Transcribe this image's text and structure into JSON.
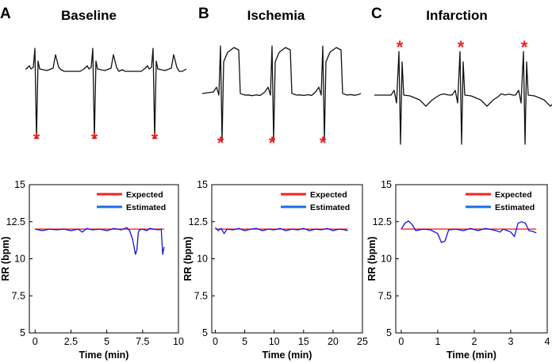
{
  "figure": {
    "panels": [
      {
        "letter": "A",
        "title": "Baseline",
        "ecg_type": "baseline",
        "beats": 3
      },
      {
        "letter": "B",
        "title": "Ischemia",
        "ecg_type": "ischemia",
        "beats": 3
      },
      {
        "letter": "C",
        "title": "Infarction",
        "ecg_type": "infarction",
        "beats": 3
      }
    ],
    "marker_symbol": "*",
    "marker_color": "#ff1a1a",
    "expected_color": "#ff2020",
    "estimated_color": "#1414dc",
    "legend_estimated_color": "#1a6ee8"
  },
  "chart_data": [
    {
      "type": "line",
      "title": "Baseline",
      "xlabel": "Time (min)",
      "ylabel": "RR (bpm)",
      "xlim": [
        -0.4,
        10
      ],
      "ylim": [
        5,
        15
      ],
      "xticks": [
        "0",
        "2.5",
        "5",
        "7.5",
        "10"
      ],
      "xtick_values": [
        0,
        2.5,
        5,
        7.5,
        10
      ],
      "yticks": [
        "5",
        "7.5",
        "10",
        "12.5",
        "15"
      ],
      "ytick_values": [
        5,
        7.5,
        10,
        12.5,
        15
      ],
      "legend": [
        "Expected",
        "Estimated"
      ],
      "series": [
        {
          "name": "Expected",
          "x": [
            0,
            9
          ],
          "y": [
            12,
            12
          ]
        },
        {
          "name": "Estimated",
          "x": [
            0,
            0.5,
            1,
            1.5,
            2,
            2.5,
            3,
            3.3,
            3.6,
            4,
            4.5,
            5,
            5.5,
            6,
            6.4,
            6.6,
            6.8,
            6.9,
            7.0,
            7.1,
            7.2,
            7.3,
            7.5,
            7.8,
            8.0,
            8.3,
            8.6,
            8.8,
            8.9,
            9.0
          ],
          "y": [
            12.0,
            11.9,
            12.0,
            11.95,
            12.0,
            11.9,
            12.0,
            11.8,
            12.05,
            11.95,
            12.0,
            11.9,
            12.05,
            11.95,
            12.1,
            11.9,
            11.3,
            10.8,
            10.3,
            10.6,
            11.8,
            11.95,
            12.0,
            11.9,
            12.05,
            12.0,
            11.95,
            12.0,
            10.3,
            10.8
          ]
        }
      ]
    },
    {
      "type": "line",
      "title": "Ischemia",
      "xlabel": "Time (min)",
      "ylabel": "RR (bpm)",
      "xlim": [
        -0.6,
        25
      ],
      "ylim": [
        5,
        15
      ],
      "xticks": [
        "0",
        "5",
        "10",
        "15",
        "20",
        "25"
      ],
      "xtick_values": [
        0,
        5,
        10,
        15,
        20,
        25
      ],
      "yticks": [
        "5",
        "7.5",
        "10",
        "12.5",
        "15"
      ],
      "ytick_values": [
        5,
        7.5,
        10,
        12.5,
        15
      ],
      "legend": [
        "Expected",
        "Estimated"
      ],
      "series": [
        {
          "name": "Expected",
          "x": [
            0,
            22.5
          ],
          "y": [
            12,
            12
          ]
        },
        {
          "name": "Estimated",
          "x": [
            0,
            0.5,
            1,
            1.5,
            2,
            3,
            4,
            5,
            6,
            7,
            8,
            9,
            10,
            11,
            12,
            13,
            14,
            15,
            16,
            17,
            18,
            19,
            20,
            21,
            22,
            22.5
          ],
          "y": [
            12.1,
            11.9,
            12.05,
            11.7,
            12.0,
            11.95,
            12.05,
            11.9,
            12.0,
            12.05,
            11.9,
            12.0,
            11.95,
            12.05,
            11.9,
            12.0,
            11.95,
            12.05,
            11.9,
            12.0,
            11.95,
            12.05,
            11.9,
            12.0,
            11.95,
            11.9
          ]
        }
      ]
    },
    {
      "type": "line",
      "title": "Infarction",
      "xlabel": "Time (min)",
      "ylabel": "RR (bpm)",
      "xlim": [
        -0.15,
        4
      ],
      "ylim": [
        5,
        15
      ],
      "xticks": [
        "0",
        "1",
        "2",
        "3",
        "4"
      ],
      "xtick_values": [
        0,
        1,
        2,
        3,
        4
      ],
      "yticks": [
        "5",
        "7.5",
        "10",
        "12.5",
        "15"
      ],
      "ytick_values": [
        5,
        7.5,
        10,
        12.5,
        15
      ],
      "legend": [
        "Expected",
        "Estimated"
      ],
      "series": [
        {
          "name": "Expected",
          "x": [
            0,
            3.7
          ],
          "y": [
            12,
            12
          ]
        },
        {
          "name": "Estimated",
          "x": [
            0,
            0.1,
            0.2,
            0.3,
            0.4,
            0.6,
            0.8,
            1.0,
            1.1,
            1.2,
            1.3,
            1.5,
            1.7,
            1.9,
            2.1,
            2.3,
            2.5,
            2.6,
            2.7,
            2.8,
            3.0,
            3.1,
            3.2,
            3.3,
            3.4,
            3.5,
            3.6,
            3.7
          ],
          "y": [
            12.0,
            12.4,
            12.55,
            12.3,
            11.9,
            12.0,
            11.95,
            11.7,
            11.1,
            11.2,
            11.95,
            12.0,
            11.9,
            12.05,
            11.9,
            12.05,
            11.95,
            11.9,
            11.8,
            12.0,
            11.8,
            11.5,
            12.4,
            12.5,
            12.4,
            11.9,
            11.85,
            11.75
          ]
        }
      ]
    }
  ]
}
